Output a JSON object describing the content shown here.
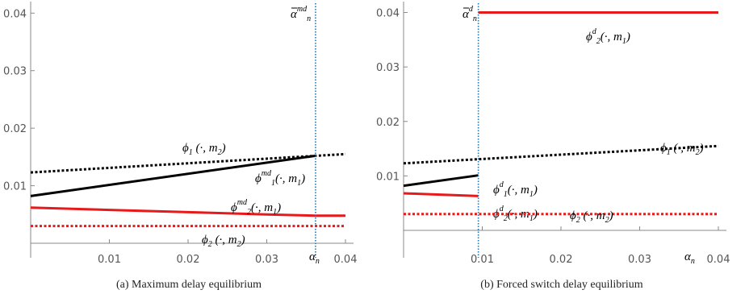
{
  "chart_data": [
    {
      "type": "line",
      "caption": "(a) Maximum delay equilibrium",
      "xlim": [
        0,
        0.04
      ],
      "ylim": [
        0,
        0.042
      ],
      "xticks": [
        "0.01",
        "0.02",
        "0.03",
        "0.04"
      ],
      "yticks": [
        "0.01",
        "0.02",
        "0.03",
        "0.04"
      ],
      "x_axis_label": {
        "base": "α",
        "sub": "n"
      },
      "threshold": {
        "x": 0.0362,
        "label": {
          "base": "α",
          "bar": true,
          "sup": "md",
          "sub": "n"
        },
        "color": "#1f77b4"
      },
      "series": [
        {
          "label": {
            "base": "ϕ",
            "sub": "1",
            "sup": "",
            "arg": " (·, m",
            "argsub": "2",
            "close": ")"
          },
          "color": "#000000",
          "dash": "dotted",
          "x": [
            0,
            0.04
          ],
          "y": [
            0.0123,
            0.0155
          ]
        },
        {
          "label": {
            "base": "ϕ",
            "sub": "1",
            "sup": "md",
            "arg": "(·, m",
            "argsub": "1",
            "close": ")"
          },
          "color": "#000000",
          "dash": "solid",
          "x": [
            0,
            0.0362
          ],
          "y": [
            0.0082,
            0.0152
          ]
        },
        {
          "label": {
            "base": "ϕ",
            "sub": "2",
            "sup": "md",
            "arg": "(·, m",
            "argsub": "1",
            "close": ")"
          },
          "color": "#e8191a",
          "dash": "solid",
          "x": [
            0,
            0.01,
            0.02,
            0.03,
            0.0362,
            0.04
          ],
          "y": [
            0.0062,
            0.0058,
            0.0054,
            0.005,
            0.0048,
            0.0048
          ]
        },
        {
          "label": {
            "base": "ϕ",
            "sub": "2",
            "sup": "",
            "arg": " (·, m",
            "argsub": "2",
            "close": ")"
          },
          "color": "#e8191a",
          "dash": "dotted",
          "x": [
            0,
            0.04
          ],
          "y": [
            0.003,
            0.003
          ]
        }
      ]
    },
    {
      "type": "line",
      "caption": "(b) Forced switch delay equilibrium",
      "xlim": [
        0,
        0.04
      ],
      "ylim": [
        0,
        0.042
      ],
      "xticks": [
        "0.01",
        "0.02",
        "0.03",
        "0.04"
      ],
      "yticks": [
        "0.01",
        "0.02",
        "0.03",
        "0.04"
      ],
      "x_axis_label": {
        "base": "α",
        "sub": "n"
      },
      "threshold": {
        "x": 0.0095,
        "label": {
          "base": "α",
          "bar": true,
          "sup": "d",
          "sub": "n"
        },
        "color": "#1f77b4"
      },
      "series": [
        {
          "label": {
            "base": "ϕ",
            "sub": "2",
            "sup": "d",
            "arg": "(·, m",
            "argsub": "1",
            "close": ")"
          },
          "color": "#e8191a",
          "dash": "solid",
          "x": [
            0.0095,
            0.04
          ],
          "y": [
            0.04,
            0.04
          ]
        },
        {
          "label": {
            "base": "ϕ",
            "sub": "1",
            "sup": "",
            "arg": " (·, m",
            "argsub": "2",
            "close": ")"
          },
          "color": "#000000",
          "dash": "dotted",
          "x": [
            0,
            0.04
          ],
          "y": [
            0.0123,
            0.0155
          ]
        },
        {
          "label": {
            "base": "ϕ",
            "sub": "1",
            "sup": "d",
            "arg": "(·, m",
            "argsub": "1",
            "close": ")"
          },
          "color": "#000000",
          "dash": "solid",
          "x": [
            0,
            0.0095
          ],
          "y": [
            0.0082,
            0.0101
          ]
        },
        {
          "label": {
            "base": "ϕ",
            "sub": "2",
            "sup": "d",
            "arg": "(·, m",
            "argsub": "1",
            "close": ")"
          },
          "color": "#e8191a",
          "dash": "solid",
          "x": [
            0,
            0.0095
          ],
          "y": [
            0.0068,
            0.0063
          ]
        },
        {
          "label": {
            "base": "ϕ",
            "sub": "2",
            "sup": "",
            "arg": " (·, m",
            "argsub": "2",
            "close": ")"
          },
          "color": "#e8191a",
          "dash": "dotted",
          "x": [
            0,
            0.04
          ],
          "y": [
            0.003,
            0.003
          ]
        }
      ]
    }
  ]
}
